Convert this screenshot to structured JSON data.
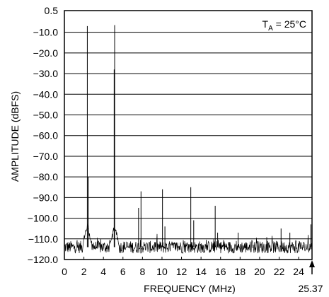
{
  "chart_data": {
    "type": "line",
    "xlabel": "FREQUENCY (MHz)",
    "ylabel": "AMPLITUDE (dBFS)",
    "xlim": [
      0,
      25.37
    ],
    "ylim": [
      -120,
      0.5
    ],
    "x_ticks": [
      0,
      2,
      4,
      6,
      8,
      10,
      12,
      14,
      16,
      18,
      20,
      22,
      24
    ],
    "x_tick_labels": [
      "0",
      "2",
      "4",
      "6",
      "8",
      "10",
      "12",
      "14",
      "16",
      "18",
      "20",
      "22",
      "24"
    ],
    "y_ticks": [
      0.5,
      -10,
      -20,
      -30,
      -40,
      -50,
      -60,
      -70,
      -80,
      -90,
      -100,
      -110,
      -120
    ],
    "y_tick_labels": [
      "0.5",
      "−10.0",
      "−20.0",
      "−30.0",
      "−40.0",
      "−50.0",
      "−60.0",
      "−70.0",
      "−80.0",
      "−90.0",
      "−100.0",
      "−110.0",
      "−120.0"
    ],
    "grid": true,
    "annotation": {
      "text_main": "T",
      "text_sub": "A",
      "text_rest": " = 25°C"
    },
    "end_marker_label": "25.37",
    "noise_floor": -114,
    "series": [
      {
        "peaks": [
          {
            "x": 2.35,
            "y": -7
          },
          {
            "x": 5.15,
            "y": -6.5
          },
          {
            "x": 5.1,
            "y": -28
          },
          {
            "x": 2.45,
            "y": -80
          },
          {
            "x": 7.6,
            "y": -95
          },
          {
            "x": 7.85,
            "y": -87
          },
          {
            "x": 10.05,
            "y": -86
          },
          {
            "x": 10.3,
            "y": -104
          },
          {
            "x": 12.95,
            "y": -85
          },
          {
            "x": 13.25,
            "y": -101
          },
          {
            "x": 15.45,
            "y": -94
          },
          {
            "x": 15.7,
            "y": -107
          },
          {
            "x": 17.8,
            "y": -107
          },
          {
            "x": 22.2,
            "y": -105
          },
          {
            "x": 23.1,
            "y": -107
          },
          {
            "x": 25.25,
            "y": -103
          }
        ]
      }
    ]
  }
}
